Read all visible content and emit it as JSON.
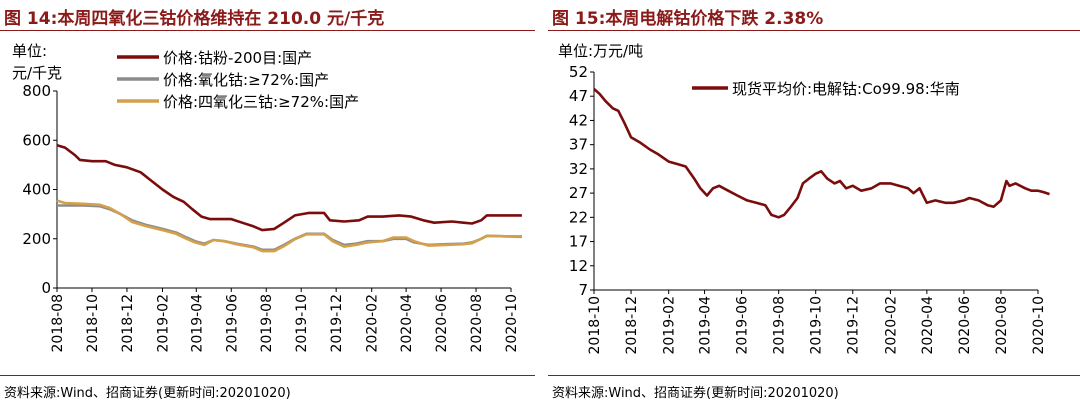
{
  "figures": [
    {
      "title": "图 14:本周四氧化三钴价格维持在 210.0 元/千克",
      "source": "资料来源:Wind、招商证券(更新时间:20201020)"
    },
    {
      "title": "图 15:本周电解钴价格下跌 2.38%",
      "source": "资料来源:Wind、招商证券(更新时间:20201020)"
    }
  ],
  "chart_data": [
    {
      "type": "line",
      "unit_line1": "单位:",
      "unit_line2": "元/千克",
      "ylim": [
        0,
        800
      ],
      "yticks": [
        "0",
        "200",
        "400",
        "600",
        "800"
      ],
      "xlim": [
        "2018-08",
        "2020-10"
      ],
      "xticks": [
        "2018-08",
        "2018-10",
        "2018-12",
        "2019-02",
        "2019-04",
        "2019-06",
        "2019-08",
        "2019-10",
        "2019-12",
        "2020-02",
        "2020-04",
        "2020-06",
        "2020-08",
        "2020-10"
      ],
      "legend_position": "top",
      "series": [
        {
          "name": "价格:钴粉-200目:国产",
          "color": "#7B0C0C",
          "points": [
            [
              "2018-08-01",
              580
            ],
            [
              "2018-08-15",
              570
            ],
            [
              "2018-09-01",
              540
            ],
            [
              "2018-09-10",
              520
            ],
            [
              "2018-10-01",
              515
            ],
            [
              "2018-10-25",
              515
            ],
            [
              "2018-11-10",
              500
            ],
            [
              "2018-12-01",
              490
            ],
            [
              "2018-12-25",
              470
            ],
            [
              "2019-01-10",
              440
            ],
            [
              "2019-02-01",
              400
            ],
            [
              "2019-02-20",
              370
            ],
            [
              "2019-03-10",
              350
            ],
            [
              "2019-03-25",
              320
            ],
            [
              "2019-04-10",
              290
            ],
            [
              "2019-04-25",
              280
            ],
            [
              "2019-05-15",
              280
            ],
            [
              "2019-06-01",
              280
            ],
            [
              "2019-06-20",
              265
            ],
            [
              "2019-07-10",
              250
            ],
            [
              "2019-07-25",
              235
            ],
            [
              "2019-08-15",
              240
            ],
            [
              "2019-09-01",
              265
            ],
            [
              "2019-09-20",
              295
            ],
            [
              "2019-10-15",
              305
            ],
            [
              "2019-11-10",
              305
            ],
            [
              "2019-11-20",
              275
            ],
            [
              "2019-12-15",
              270
            ],
            [
              "2020-01-10",
              275
            ],
            [
              "2020-01-25",
              290
            ],
            [
              "2020-02-20",
              290
            ],
            [
              "2020-03-20",
              295
            ],
            [
              "2020-04-10",
              290
            ],
            [
              "2020-05-01",
              275
            ],
            [
              "2020-05-20",
              265
            ],
            [
              "2020-06-20",
              270
            ],
            [
              "2020-07-10",
              265
            ],
            [
              "2020-07-25",
              262
            ],
            [
              "2020-08-10",
              275
            ],
            [
              "2020-08-20",
              295
            ],
            [
              "2020-09-20",
              295
            ],
            [
              "2020-10-20",
              295
            ]
          ]
        },
        {
          "name": "价格:氧化钴:≥72%:国产",
          "color": "#8C8C8C",
          "points": [
            [
              "2018-08-01",
              335
            ],
            [
              "2018-08-20",
              335
            ],
            [
              "2018-09-15",
              335
            ],
            [
              "2018-10-15",
              332
            ],
            [
              "2018-11-01",
              320
            ],
            [
              "2018-11-20",
              300
            ],
            [
              "2018-12-10",
              275
            ],
            [
              "2019-01-05",
              255
            ],
            [
              "2019-02-01",
              240
            ],
            [
              "2019-02-25",
              225
            ],
            [
              "2019-03-15",
              205
            ],
            [
              "2019-03-30",
              190
            ],
            [
              "2019-04-15",
              180
            ],
            [
              "2019-05-01",
              195
            ],
            [
              "2019-05-20",
              190
            ],
            [
              "2019-06-10",
              180
            ],
            [
              "2019-07-10",
              168
            ],
            [
              "2019-07-25",
              155
            ],
            [
              "2019-08-15",
              155
            ],
            [
              "2019-09-01",
              175
            ],
            [
              "2019-09-20",
              200
            ],
            [
              "2019-10-10",
              220
            ],
            [
              "2019-11-10",
              220
            ],
            [
              "2019-11-25",
              195
            ],
            [
              "2019-12-15",
              175
            ],
            [
              "2020-01-05",
              180
            ],
            [
              "2020-01-25",
              190
            ],
            [
              "2020-02-20",
              190
            ],
            [
              "2020-03-10",
              200
            ],
            [
              "2020-04-01",
              200
            ],
            [
              "2020-04-15",
              185
            ],
            [
              "2020-05-10",
              175
            ],
            [
              "2020-06-10",
              178
            ],
            [
              "2020-07-10",
              180
            ],
            [
              "2020-07-25",
              185
            ],
            [
              "2020-08-10",
              200
            ],
            [
              "2020-08-20",
              212
            ],
            [
              "2020-09-20",
              210
            ],
            [
              "2020-10-20",
              208
            ]
          ]
        },
        {
          "name": "价格:四氧化三钴:≥72%:国产",
          "color": "#D4A04A",
          "points": [
            [
              "2018-08-01",
              355
            ],
            [
              "2018-08-15",
              345
            ],
            [
              "2018-09-15",
              342
            ],
            [
              "2018-10-15",
              338
            ],
            [
              "2018-11-01",
              325
            ],
            [
              "2018-11-20",
              300
            ],
            [
              "2018-12-10",
              268
            ],
            [
              "2019-01-05",
              250
            ],
            [
              "2019-02-01",
              235
            ],
            [
              "2019-02-25",
              220
            ],
            [
              "2019-03-15",
              200
            ],
            [
              "2019-03-30",
              185
            ],
            [
              "2019-04-15",
              175
            ],
            [
              "2019-05-01",
              195
            ],
            [
              "2019-05-20",
              190
            ],
            [
              "2019-06-10",
              178
            ],
            [
              "2019-07-10",
              165
            ],
            [
              "2019-07-25",
              150
            ],
            [
              "2019-08-15",
              150
            ],
            [
              "2019-09-01",
              170
            ],
            [
              "2019-09-20",
              198
            ],
            [
              "2019-10-10",
              218
            ],
            [
              "2019-11-10",
              218
            ],
            [
              "2019-11-25",
              190
            ],
            [
              "2019-12-15",
              168
            ],
            [
              "2020-01-05",
              175
            ],
            [
              "2020-01-25",
              185
            ],
            [
              "2020-02-20",
              190
            ],
            [
              "2020-03-10",
              205
            ],
            [
              "2020-04-01",
              205
            ],
            [
              "2020-04-15",
              190
            ],
            [
              "2020-05-10",
              172
            ],
            [
              "2020-06-10",
              175
            ],
            [
              "2020-07-10",
              178
            ],
            [
              "2020-07-25",
              182
            ],
            [
              "2020-08-10",
              200
            ],
            [
              "2020-08-20",
              212
            ],
            [
              "2020-09-20",
              210
            ],
            [
              "2020-10-20",
              210
            ]
          ]
        }
      ]
    },
    {
      "type": "line",
      "unit_label": "单位:万元/吨",
      "ylim": [
        7,
        52
      ],
      "yticks": [
        "7",
        "12",
        "17",
        "22",
        "27",
        "32",
        "37",
        "42",
        "47",
        "52"
      ],
      "xlim": [
        "2018-10",
        "2020-10"
      ],
      "xticks": [
        "2018-10",
        "2018-12",
        "2019-02",
        "2019-04",
        "2019-06",
        "2019-08",
        "2019-10",
        "2019-12",
        "2020-02",
        "2020-04",
        "2020-06",
        "2020-08",
        "2020-10"
      ],
      "legend_position": "top-right",
      "series": [
        {
          "name": "现货平均价:电解钴:Co99.98:华南",
          "color": "#7B0C0C",
          "points": [
            [
              "2018-10-01",
              48.5
            ],
            [
              "2018-10-10",
              47.5
            ],
            [
              "2018-10-20",
              46
            ],
            [
              "2018-11-01",
              44.5
            ],
            [
              "2018-11-10",
              44
            ],
            [
              "2018-11-20",
              41.5
            ],
            [
              "2018-12-01",
              38.5
            ],
            [
              "2018-12-15",
              37.5
            ],
            [
              "2019-01-01",
              36
            ],
            [
              "2019-01-15",
              35
            ],
            [
              "2019-02-01",
              33.5
            ],
            [
              "2019-02-15",
              33
            ],
            [
              "2019-03-01",
              32.5
            ],
            [
              "2019-03-15",
              30
            ],
            [
              "2019-03-25",
              28
            ],
            [
              "2019-04-05",
              26.5
            ],
            [
              "2019-04-15",
              28
            ],
            [
              "2019-04-25",
              28.5
            ],
            [
              "2019-05-10",
              27.5
            ],
            [
              "2019-05-25",
              26.5
            ],
            [
              "2019-06-10",
              25.5
            ],
            [
              "2019-06-25",
              25
            ],
            [
              "2019-07-10",
              24.5
            ],
            [
              "2019-07-20",
              22.5
            ],
            [
              "2019-08-01",
              22
            ],
            [
              "2019-08-10",
              22.5
            ],
            [
              "2019-08-20",
              24
            ],
            [
              "2019-09-01",
              26
            ],
            [
              "2019-09-10",
              29
            ],
            [
              "2019-09-20",
              30
            ],
            [
              "2019-10-01",
              31
            ],
            [
              "2019-10-10",
              31.5
            ],
            [
              "2019-10-20",
              30
            ],
            [
              "2019-11-01",
              29
            ],
            [
              "2019-11-10",
              29.5
            ],
            [
              "2019-11-20",
              28
            ],
            [
              "2019-12-01",
              28.5
            ],
            [
              "2019-12-15",
              27.5
            ],
            [
              "2020-01-01",
              28
            ],
            [
              "2020-01-15",
              29
            ],
            [
              "2020-02-01",
              29
            ],
            [
              "2020-02-15",
              28.5
            ],
            [
              "2020-03-01",
              28
            ],
            [
              "2020-03-10",
              27
            ],
            [
              "2020-03-20",
              28
            ],
            [
              "2020-04-01",
              25
            ],
            [
              "2020-04-15",
              25.5
            ],
            [
              "2020-05-01",
              25
            ],
            [
              "2020-05-15",
              25
            ],
            [
              "2020-06-01",
              25.5
            ],
            [
              "2020-06-10",
              26
            ],
            [
              "2020-06-25",
              25.5
            ],
            [
              "2020-07-10",
              24.5
            ],
            [
              "2020-07-20",
              24.2
            ],
            [
              "2020-08-01",
              25.5
            ],
            [
              "2020-08-10",
              29.5
            ],
            [
              "2020-08-15",
              28.5
            ],
            [
              "2020-08-25",
              29
            ],
            [
              "2020-09-10",
              28
            ],
            [
              "2020-09-20",
              27.5
            ],
            [
              "2020-10-01",
              27.5
            ],
            [
              "2020-10-10",
              27.2
            ],
            [
              "2020-10-20",
              26.8
            ]
          ]
        }
      ]
    }
  ]
}
